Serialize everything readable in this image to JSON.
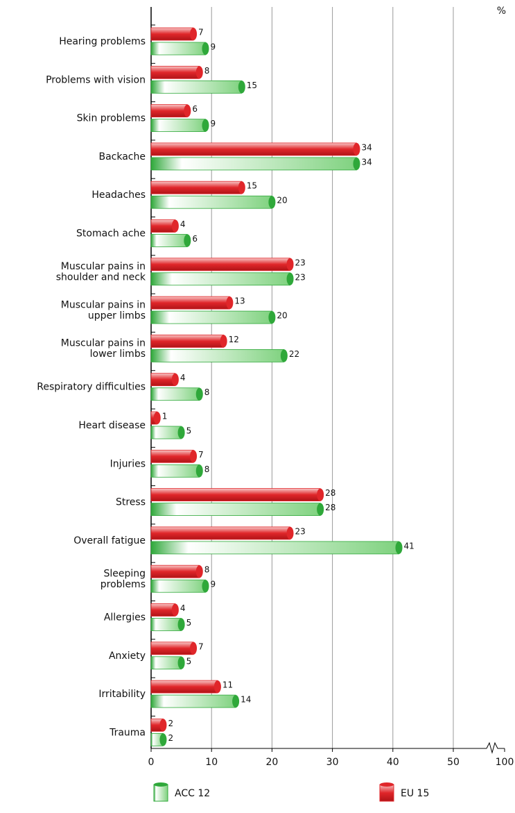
{
  "chart_data": {
    "type": "bar",
    "orientation": "horizontal",
    "unit_label": "%",
    "categories": [
      "Hearing problems",
      "Problems with vision",
      "Skin problems",
      "Backache",
      "Headaches",
      "Stomach ache",
      "Muscular pains in\nshoulder and neck",
      "Muscular pains in\nupper limbs",
      "Muscular pains in\nlower limbs",
      "Respiratory difficulties",
      "Heart disease",
      "Injuries",
      "Stress",
      "Overall fatigue",
      "Sleeping\nproblems",
      "Allergies",
      "Anxiety",
      "Irritability",
      "Trauma"
    ],
    "series": [
      {
        "name": "EU 15",
        "color": "#e0262a",
        "values": [
          7,
          8,
          6,
          34,
          15,
          4,
          23,
          13,
          12,
          4,
          1,
          7,
          28,
          23,
          8,
          4,
          7,
          11,
          2
        ]
      },
      {
        "name": "ACC 12",
        "color": "#2fa83a",
        "values": [
          9,
          15,
          9,
          34,
          20,
          6,
          23,
          20,
          22,
          8,
          5,
          8,
          28,
          41,
          9,
          5,
          5,
          14,
          2
        ]
      }
    ],
    "xlim": [
      0,
      100
    ],
    "xticks": [
      0,
      10,
      20,
      30,
      40,
      50,
      100
    ],
    "axis_break": true,
    "grid": true
  }
}
